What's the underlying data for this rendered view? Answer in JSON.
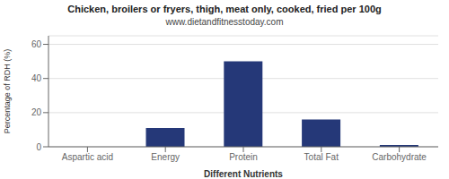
{
  "chart_data": {
    "type": "bar",
    "title": "Chicken, broilers or fryers, thigh, meat only, cooked, fried per 100g",
    "subtitle": "www.dietandfitnesstoday.com",
    "categories": [
      "Aspartic acid",
      "Energy",
      "Protein",
      "Total Fat",
      "Carbohydrate"
    ],
    "values": [
      0,
      11,
      50,
      16,
      1
    ],
    "color": "#253878",
    "xlabel": "Different Nutrients",
    "ylabel": "Percentage of RDH (%)",
    "ylim": [
      0,
      65
    ],
    "yticks": [
      0,
      20,
      40,
      60
    ],
    "grid": true
  }
}
